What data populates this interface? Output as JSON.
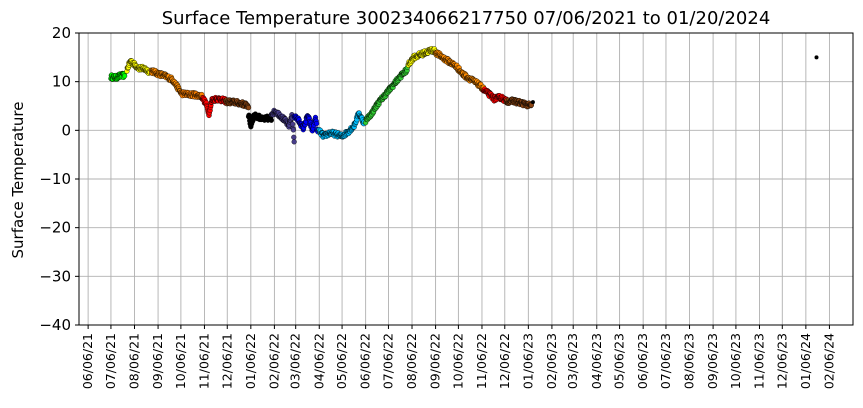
{
  "chart_data": {
    "type": "scatter",
    "title": "Surface Temperature 300234066217750  07/06/2021 to 01/20/2024",
    "ylabel": "Surface Temperature",
    "xlabel": "",
    "ylim": [
      -40,
      20
    ],
    "yticks": [
      "20",
      "10",
      "0",
      "−10",
      "−20",
      "−30",
      "−40"
    ],
    "ytick_values": [
      20,
      10,
      0,
      -10,
      -20,
      -30,
      -40
    ],
    "xlim": [
      "2021-05-25",
      "2024-03-08"
    ],
    "xticks": [
      "06/06/21",
      "07/06/21",
      "08/06/21",
      "09/06/21",
      "10/06/21",
      "11/06/21",
      "12/06/21",
      "01/06/22",
      "02/06/22",
      "03/06/22",
      "04/06/22",
      "05/06/22",
      "06/06/22",
      "07/06/22",
      "08/06/22",
      "09/06/22",
      "10/06/22",
      "11/06/22",
      "12/06/22",
      "01/06/23",
      "02/06/23",
      "03/06/23",
      "04/06/23",
      "05/06/23",
      "06/06/23",
      "07/06/23",
      "08/06/23",
      "09/06/23",
      "10/06/23",
      "11/06/23",
      "12/06/23",
      "01/06/24",
      "02/06/24"
    ],
    "xtick_dates": [
      "2021-06-06",
      "2021-07-06",
      "2021-08-06",
      "2021-09-06",
      "2021-10-06",
      "2021-11-06",
      "2021-12-06",
      "2022-01-06",
      "2022-02-06",
      "2022-03-06",
      "2022-04-06",
      "2022-05-06",
      "2022-06-06",
      "2022-07-06",
      "2022-08-06",
      "2022-09-06",
      "2022-10-06",
      "2022-11-06",
      "2022-12-06",
      "2023-01-06",
      "2023-02-06",
      "2023-03-06",
      "2023-04-06",
      "2023-05-06",
      "2023-06-06",
      "2023-07-06",
      "2023-08-06",
      "2023-09-06",
      "2023-10-06",
      "2023-11-06",
      "2023-12-06",
      "2024-01-06",
      "2024-02-06"
    ],
    "grid": true,
    "series": [
      {
        "color": "#00ff00",
        "points": [
          [
            "2021-07-06",
            11.0
          ],
          [
            "2021-07-12",
            10.8
          ],
          [
            "2021-07-18",
            11.2
          ],
          [
            "2021-07-24",
            11.3
          ]
        ]
      },
      {
        "color": "#ffff00",
        "points": [
          [
            "2021-07-27",
            12.5
          ],
          [
            "2021-08-01",
            14.3
          ],
          [
            "2021-08-06",
            13.5
          ],
          [
            "2021-08-12",
            12.8
          ],
          [
            "2021-08-20",
            12.6
          ],
          [
            "2021-08-26",
            12.0
          ]
        ]
      },
      {
        "color": "#ff8c00",
        "points": [
          [
            "2021-08-28",
            12.2
          ],
          [
            "2021-09-05",
            11.7
          ],
          [
            "2021-09-15",
            11.2
          ],
          [
            "2021-09-25",
            10.4
          ],
          [
            "2021-10-01",
            9.0
          ],
          [
            "2021-10-06",
            7.8
          ]
        ]
      },
      {
        "color": "#ff8000",
        "points": [
          [
            "2021-10-06",
            7.6
          ],
          [
            "2021-10-15",
            7.4
          ],
          [
            "2021-10-25",
            7.3
          ],
          [
            "2021-11-03",
            7.0
          ]
        ]
      },
      {
        "color": "#ff0000",
        "points": [
          [
            "2021-11-03",
            6.8
          ],
          [
            "2021-11-08",
            5.5
          ],
          [
            "2021-11-12",
            3.5
          ],
          [
            "2021-11-16",
            6.2
          ],
          [
            "2021-11-22",
            6.5
          ],
          [
            "2021-11-28",
            6.3
          ],
          [
            "2021-12-04",
            6.0
          ]
        ]
      },
      {
        "color": "#8b4513",
        "points": [
          [
            "2021-12-04",
            5.9
          ],
          [
            "2021-12-15",
            5.8
          ],
          [
            "2021-12-25",
            5.5
          ],
          [
            "2022-01-03",
            5.0
          ]
        ]
      },
      {
        "color": "#000000",
        "points": [
          [
            "2022-01-03",
            3.0
          ],
          [
            "2022-01-06",
            1.0
          ],
          [
            "2022-01-10",
            3.0
          ],
          [
            "2022-01-16",
            2.8
          ],
          [
            "2022-01-22",
            2.2
          ],
          [
            "2022-01-28",
            2.5
          ],
          [
            "2022-02-02",
            2.2
          ]
        ]
      },
      {
        "color": "#483d8b",
        "points": [
          [
            "2022-02-02",
            3.5
          ],
          [
            "2022-02-08",
            3.8
          ],
          [
            "2022-02-14",
            3.0
          ],
          [
            "2022-02-20",
            2.0
          ],
          [
            "2022-02-25",
            1.0
          ],
          [
            "2022-03-01",
            3.0
          ],
          [
            "2022-03-04",
            -2.0
          ]
        ]
      },
      {
        "color": "#0000ff",
        "points": [
          [
            "2022-03-04",
            3.0
          ],
          [
            "2022-03-10",
            2.0
          ],
          [
            "2022-03-16",
            0.5
          ],
          [
            "2022-03-22",
            3.0
          ],
          [
            "2022-03-28",
            0.0
          ],
          [
            "2022-04-01",
            2.5
          ],
          [
            "2022-04-04",
            -0.5
          ]
        ]
      },
      {
        "color": "#00bfff",
        "points": [
          [
            "2022-04-05",
            0.0
          ],
          [
            "2022-04-12",
            -1.2
          ],
          [
            "2022-04-20",
            -0.5
          ],
          [
            "2022-04-28",
            -0.8
          ],
          [
            "2022-05-06",
            -1.2
          ],
          [
            "2022-05-14",
            -0.3
          ],
          [
            "2022-05-22",
            1.0
          ],
          [
            "2022-05-28",
            3.5
          ],
          [
            "2022-06-04",
            1.5
          ]
        ]
      },
      {
        "color": "#32cd32",
        "points": [
          [
            "2022-06-06",
            2.0
          ],
          [
            "2022-06-14",
            3.5
          ],
          [
            "2022-06-22",
            5.5
          ],
          [
            "2022-06-30",
            7.0
          ],
          [
            "2022-07-08",
            8.5
          ],
          [
            "2022-07-16",
            10.0
          ],
          [
            "2022-07-24",
            11.5
          ],
          [
            "2022-07-31",
            12.5
          ]
        ]
      },
      {
        "color": "#ffff00",
        "points": [
          [
            "2022-08-01",
            13.5
          ],
          [
            "2022-08-08",
            15.0
          ],
          [
            "2022-08-16",
            15.5
          ],
          [
            "2022-08-24",
            16.0
          ],
          [
            "2022-09-01",
            16.5
          ],
          [
            "2022-09-06",
            16.2
          ]
        ]
      },
      {
        "color": "#ff8c00",
        "points": [
          [
            "2022-09-06",
            16.0
          ],
          [
            "2022-09-15",
            15.0
          ],
          [
            "2022-09-25",
            14.0
          ],
          [
            "2022-10-04",
            13.0
          ],
          [
            "2022-10-12",
            11.5
          ],
          [
            "2022-10-22",
            10.5
          ],
          [
            "2022-11-01",
            9.5
          ],
          [
            "2022-11-08",
            8.5
          ]
        ]
      },
      {
        "color": "#ff0000",
        "points": [
          [
            "2022-11-08",
            8.3
          ],
          [
            "2022-11-15",
            7.5
          ],
          [
            "2022-11-22",
            6.5
          ],
          [
            "2022-12-01",
            6.8
          ],
          [
            "2022-12-08",
            6.0
          ]
        ]
      },
      {
        "color": "#8b4513",
        "points": [
          [
            "2022-12-08",
            6.0
          ],
          [
            "2022-12-18",
            6.0
          ],
          [
            "2022-12-28",
            5.6
          ],
          [
            "2023-01-06",
            5.2
          ],
          [
            "2023-01-10",
            5.0
          ]
        ]
      },
      {
        "color": "#000000",
        "points": [
          [
            "2023-01-12",
            5.8
          ],
          [
            "2024-01-20",
            15.0
          ]
        ]
      }
    ]
  }
}
